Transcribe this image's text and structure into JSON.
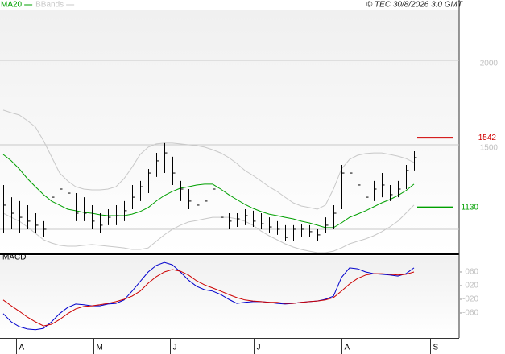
{
  "copyright": "© TEC 30/8/2026 3:0 GMT",
  "chart_data": [
    {
      "type": "ohlc",
      "high": [
        1262,
        1190,
        1167,
        1143,
        1095,
        1048,
        1214,
        1286,
        1286,
        1214,
        1190,
        1143,
        1095,
        1119,
        1143,
        1167,
        1262,
        1286,
        1357,
        1452,
        1510,
        1429,
        1286,
        1238,
        1190,
        1214,
        1348,
        1143,
        1095,
        1095,
        1119,
        1110,
        1095,
        1071,
        1048,
        1024,
        1024,
        1033,
        1024,
        1000,
        1071,
        1143,
        1381,
        1381,
        1333,
        1262,
        1286,
        1333,
        1262,
        1286,
        1381,
        1462
      ],
      "low": [
        976,
        1000,
        976,
        1000,
        976,
        952,
        1095,
        1143,
        1119,
        1048,
        1048,
        1000,
        976,
        1024,
        1024,
        1048,
        1119,
        1167,
        1214,
        1310,
        1333,
        1262,
        1167,
        1119,
        1095,
        1110,
        1119,
        1024,
        1000,
        1014,
        1024,
        1014,
        1000,
        976,
        967,
        929,
        929,
        952,
        952,
        929,
        976,
        1000,
        1119,
        1286,
        1214,
        1143,
        1167,
        1190,
        1167,
        1190,
        1238,
        1348
      ],
      "close": [
        1143,
        1095,
        1071,
        1048,
        1024,
        1000,
        1190,
        1238,
        1214,
        1095,
        1095,
        1048,
        1024,
        1071,
        1081,
        1110,
        1190,
        1252,
        1333,
        1405,
        1452,
        1333,
        1238,
        1167,
        1143,
        1167,
        1238,
        1071,
        1048,
        1062,
        1081,
        1048,
        1033,
        1014,
        1000,
        952,
        1000,
        1000,
        986,
        967,
        1024,
        1095,
        1333,
        1333,
        1262,
        1190,
        1238,
        1262,
        1205,
        1238,
        1348,
        1424
      ],
      "series": [
        {
          "name": "MA20",
          "color": "#00a000",
          "values": [
            1443,
            1405,
            1357,
            1300,
            1252,
            1205,
            1167,
            1143,
            1119,
            1110,
            1100,
            1095,
            1086,
            1081,
            1081,
            1081,
            1090,
            1105,
            1129,
            1167,
            1200,
            1224,
            1243,
            1252,
            1262,
            1267,
            1267,
            1238,
            1205,
            1176,
            1148,
            1124,
            1105,
            1090,
            1081,
            1071,
            1062,
            1048,
            1038,
            1024,
            1010,
            1010,
            1038,
            1071,
            1090,
            1110,
            1133,
            1157,
            1176,
            1200,
            1229,
            1267
          ]
        },
        {
          "name": "BBands",
          "color": "#c8c8c8",
          "upper": [
            1705,
            1690,
            1676,
            1643,
            1605,
            1524,
            1429,
            1333,
            1286,
            1252,
            1238,
            1233,
            1233,
            1238,
            1252,
            1300,
            1367,
            1443,
            1486,
            1505,
            1510,
            1510,
            1505,
            1500,
            1495,
            1486,
            1471,
            1452,
            1424,
            1390,
            1348,
            1319,
            1286,
            1252,
            1224,
            1190,
            1157,
            1138,
            1129,
            1119,
            1143,
            1238,
            1357,
            1414,
            1438,
            1448,
            1452,
            1452,
            1443,
            1433,
            1419,
            1395
          ],
          "lower": [
            1095,
            1071,
            1048,
            1014,
            976,
            938,
            919,
            905,
            900,
            900,
            905,
            910,
            905,
            900,
            895,
            890,
            881,
            881,
            890,
            929,
            967,
            1000,
            1024,
            1043,
            1052,
            1062,
            1071,
            1071,
            1071,
            1062,
            1048,
            1024,
            990,
            962,
            938,
            914,
            895,
            881,
            871,
            862,
            862,
            871,
            890,
            914,
            929,
            943,
            962,
            986,
            1014,
            1048,
            1095,
            1143
          ]
        }
      ],
      "levels": [
        {
          "value": 1542,
          "color": "#d00000"
        },
        {
          "value": 1130,
          "color": "#00a000"
        }
      ],
      "xlim": [
        -0.4,
        56.6
      ],
      "ylim": [
        857,
        2300
      ],
      "yticks": [
        1500,
        2000
      ],
      "gridlines": [
        1000,
        1500,
        2000
      ]
    },
    {
      "type": "line",
      "title": "MACD",
      "series": [
        {
          "color": "#0000cc",
          "values": [
            -62,
            -86,
            -100,
            -107,
            -109,
            -105,
            -86,
            -62,
            -44,
            -34,
            -36,
            -39,
            -39,
            -34,
            -32,
            -22,
            4,
            32,
            60,
            79,
            88,
            81,
            60,
            36,
            18,
            8,
            4,
            -6,
            -20,
            -32,
            -29,
            -27,
            -27,
            -29,
            -32,
            -34,
            -32,
            -29,
            -27,
            -25,
            -20,
            -11,
            44,
            72,
            69,
            60,
            55,
            53,
            51,
            48,
            55,
            72
          ]
        },
        {
          "color": "#cc0000",
          "values": [
            -22,
            -39,
            -55,
            -72,
            -86,
            -98,
            -93,
            -79,
            -62,
            -48,
            -41,
            -39,
            -36,
            -32,
            -27,
            -20,
            -11,
            4,
            27,
            46,
            60,
            67,
            62,
            51,
            34,
            22,
            13,
            4,
            -6,
            -15,
            -22,
            -25,
            -27,
            -29,
            -29,
            -32,
            -32,
            -29,
            -27,
            -25,
            -22,
            -15,
            4,
            25,
            41,
            51,
            55,
            55,
            53,
            51,
            53,
            60
          ]
        }
      ],
      "xlim": [
        -0.4,
        56.6
      ],
      "ylim": [
        -133,
        107
      ],
      "yticks": [
        {
          "value": 60,
          "label": "060"
        },
        {
          "value": 20,
          "label": "020"
        },
        {
          "value": -20,
          "label": "-020"
        },
        {
          "value": -60,
          "label": "-060"
        }
      ],
      "xticks": [
        {
          "value": 1.6,
          "label": "A"
        },
        {
          "value": 11.2,
          "label": "M"
        },
        {
          "value": 20.7,
          "label": "J"
        },
        {
          "value": 31.1,
          "label": "J"
        },
        {
          "value": 42.0,
          "label": "A"
        },
        {
          "value": 53.0,
          "label": "S"
        }
      ]
    }
  ]
}
